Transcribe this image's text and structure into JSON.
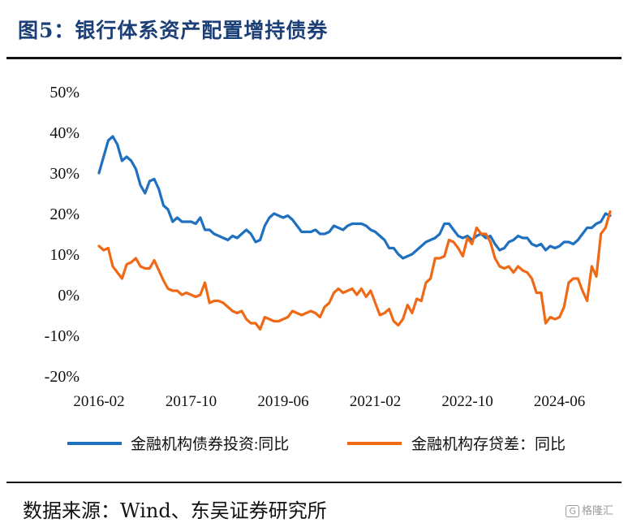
{
  "figure": {
    "title": "图5：银行体系资产配置增持债券",
    "source": "数据来源：Wind、东吴证券研究所",
    "watermark": "格隆汇",
    "watermark_logo": "G"
  },
  "chart_data": {
    "type": "line",
    "title": "图5：银行体系资产配置增持债券",
    "ylim": [
      -0.2,
      0.5
    ],
    "y_ticks": [
      "50%",
      "40%",
      "30%",
      "20%",
      "10%",
      "0%",
      "-10%",
      "-20%"
    ],
    "y_tick_values": [
      0.5,
      0.4,
      0.3,
      0.2,
      0.1,
      0.0,
      -0.1,
      -0.2
    ],
    "x_start": "2016-02",
    "x_end": "2025-05",
    "x_tick_labels": [
      "2016-02",
      "2017-10",
      "2019-06",
      "2021-02",
      "2022-10",
      "2024-06"
    ],
    "grid": false,
    "legend": "bottom",
    "series": [
      {
        "name": "金融机构债券投资:同比",
        "color": "#2070c0",
        "points": [
          [
            "2016-02",
            0.3
          ],
          [
            "2016-03",
            0.34
          ],
          [
            "2016-04",
            0.38
          ],
          [
            "2016-05",
            0.39
          ],
          [
            "2016-06",
            0.37
          ],
          [
            "2016-07",
            0.33
          ],
          [
            "2016-08",
            0.34
          ],
          [
            "2016-09",
            0.33
          ],
          [
            "2016-10",
            0.31
          ],
          [
            "2016-11",
            0.27
          ],
          [
            "2016-12",
            0.25
          ],
          [
            "2017-01",
            0.28
          ],
          [
            "2017-02",
            0.285
          ],
          [
            "2017-03",
            0.26
          ],
          [
            "2017-04",
            0.22
          ],
          [
            "2017-05",
            0.21
          ],
          [
            "2017-06",
            0.18
          ],
          [
            "2017-07",
            0.19
          ],
          [
            "2017-08",
            0.18
          ],
          [
            "2017-09",
            0.18
          ],
          [
            "2017-10",
            0.18
          ],
          [
            "2017-11",
            0.175
          ],
          [
            "2017-12",
            0.19
          ],
          [
            "2018-01",
            0.16
          ],
          [
            "2018-02",
            0.16
          ],
          [
            "2018-03",
            0.15
          ],
          [
            "2018-04",
            0.145
          ],
          [
            "2018-05",
            0.14
          ],
          [
            "2018-06",
            0.135
          ],
          [
            "2018-07",
            0.145
          ],
          [
            "2018-08",
            0.14
          ],
          [
            "2018-09",
            0.15
          ],
          [
            "2018-10",
            0.16
          ],
          [
            "2018-11",
            0.15
          ],
          [
            "2018-12",
            0.13
          ],
          [
            "2019-01",
            0.135
          ],
          [
            "2019-02",
            0.17
          ],
          [
            "2019-03",
            0.19
          ],
          [
            "2019-04",
            0.2
          ],
          [
            "2019-05",
            0.195
          ],
          [
            "2019-06",
            0.19
          ],
          [
            "2019-07",
            0.195
          ],
          [
            "2019-08",
            0.185
          ],
          [
            "2019-09",
            0.17
          ],
          [
            "2019-10",
            0.155
          ],
          [
            "2019-11",
            0.155
          ],
          [
            "2019-12",
            0.155
          ],
          [
            "2020-01",
            0.16
          ],
          [
            "2020-02",
            0.15
          ],
          [
            "2020-03",
            0.15
          ],
          [
            "2020-04",
            0.155
          ],
          [
            "2020-05",
            0.17
          ],
          [
            "2020-06",
            0.165
          ],
          [
            "2020-07",
            0.16
          ],
          [
            "2020-08",
            0.17
          ],
          [
            "2020-09",
            0.175
          ],
          [
            "2020-10",
            0.175
          ],
          [
            "2020-11",
            0.175
          ],
          [
            "2020-12",
            0.17
          ],
          [
            "2021-01",
            0.16
          ],
          [
            "2021-02",
            0.155
          ],
          [
            "2021-03",
            0.145
          ],
          [
            "2021-04",
            0.135
          ],
          [
            "2021-05",
            0.115
          ],
          [
            "2021-06",
            0.115
          ],
          [
            "2021-07",
            0.1
          ],
          [
            "2021-08",
            0.09
          ],
          [
            "2021-09",
            0.095
          ],
          [
            "2021-10",
            0.1
          ],
          [
            "2021-11",
            0.11
          ],
          [
            "2021-12",
            0.12
          ],
          [
            "2022-01",
            0.13
          ],
          [
            "2022-02",
            0.135
          ],
          [
            "2022-03",
            0.14
          ],
          [
            "2022-04",
            0.15
          ],
          [
            "2022-05",
            0.175
          ],
          [
            "2022-06",
            0.175
          ],
          [
            "2022-07",
            0.16
          ],
          [
            "2022-08",
            0.145
          ],
          [
            "2022-09",
            0.14
          ],
          [
            "2022-10",
            0.145
          ],
          [
            "2022-11",
            0.135
          ],
          [
            "2022-12",
            0.145
          ],
          [
            "2023-01",
            0.15
          ],
          [
            "2023-02",
            0.14
          ],
          [
            "2023-03",
            0.145
          ],
          [
            "2023-04",
            0.125
          ],
          [
            "2023-05",
            0.11
          ],
          [
            "2023-06",
            0.115
          ],
          [
            "2023-07",
            0.13
          ],
          [
            "2023-08",
            0.135
          ],
          [
            "2023-09",
            0.145
          ],
          [
            "2023-10",
            0.14
          ],
          [
            "2023-11",
            0.14
          ],
          [
            "2023-12",
            0.125
          ],
          [
            "2024-01",
            0.12
          ],
          [
            "2024-02",
            0.125
          ],
          [
            "2024-03",
            0.11
          ],
          [
            "2024-04",
            0.12
          ],
          [
            "2024-05",
            0.115
          ],
          [
            "2024-06",
            0.12
          ],
          [
            "2024-07",
            0.13
          ],
          [
            "2024-08",
            0.13
          ],
          [
            "2024-09",
            0.125
          ],
          [
            "2024-10",
            0.135
          ],
          [
            "2024-11",
            0.15
          ],
          [
            "2024-12",
            0.165
          ],
          [
            "2025-01",
            0.165
          ],
          [
            "2025-02",
            0.175
          ],
          [
            "2025-03",
            0.18
          ],
          [
            "2025-04",
            0.2
          ],
          [
            "2025-05",
            0.195
          ]
        ]
      },
      {
        "name": "金融机构存贷差：同比",
        "color": "#ee6a17",
        "points": [
          [
            "2016-02",
            0.12
          ],
          [
            "2016-03",
            0.11
          ],
          [
            "2016-04",
            0.115
          ],
          [
            "2016-05",
            0.07
          ],
          [
            "2016-06",
            0.055
          ],
          [
            "2016-07",
            0.04
          ],
          [
            "2016-08",
            0.075
          ],
          [
            "2016-09",
            0.08
          ],
          [
            "2016-10",
            0.09
          ],
          [
            "2016-11",
            0.07
          ],
          [
            "2016-12",
            0.065
          ],
          [
            "2017-01",
            0.065
          ],
          [
            "2017-02",
            0.085
          ],
          [
            "2017-03",
            0.06
          ],
          [
            "2017-04",
            0.035
          ],
          [
            "2017-05",
            0.015
          ],
          [
            "2017-06",
            0.01
          ],
          [
            "2017-07",
            0.01
          ],
          [
            "2017-08",
            0.0
          ],
          [
            "2017-09",
            0.005
          ],
          [
            "2017-10",
            0.0
          ],
          [
            "2017-11",
            -0.005
          ],
          [
            "2017-12",
            0.0
          ],
          [
            "2018-01",
            0.03
          ],
          [
            "2018-02",
            -0.02
          ],
          [
            "2018-03",
            -0.015
          ],
          [
            "2018-04",
            -0.015
          ],
          [
            "2018-05",
            -0.02
          ],
          [
            "2018-06",
            -0.03
          ],
          [
            "2018-07",
            -0.04
          ],
          [
            "2018-08",
            -0.045
          ],
          [
            "2018-09",
            -0.04
          ],
          [
            "2018-10",
            -0.06
          ],
          [
            "2018-11",
            -0.07
          ],
          [
            "2018-12",
            -0.07
          ],
          [
            "2019-01",
            -0.085
          ],
          [
            "2019-02",
            -0.055
          ],
          [
            "2019-03",
            -0.06
          ],
          [
            "2019-04",
            -0.065
          ],
          [
            "2019-05",
            -0.065
          ],
          [
            "2019-06",
            -0.06
          ],
          [
            "2019-07",
            -0.055
          ],
          [
            "2019-08",
            -0.04
          ],
          [
            "2019-09",
            -0.045
          ],
          [
            "2019-10",
            -0.05
          ],
          [
            "2019-11",
            -0.045
          ],
          [
            "2019-12",
            -0.04
          ],
          [
            "2020-01",
            -0.045
          ],
          [
            "2020-02",
            -0.055
          ],
          [
            "2020-03",
            -0.03
          ],
          [
            "2020-04",
            -0.02
          ],
          [
            "2020-05",
            0.005
          ],
          [
            "2020-06",
            0.015
          ],
          [
            "2020-07",
            0.005
          ],
          [
            "2020-08",
            0.01
          ],
          [
            "2020-09",
            0.015
          ],
          [
            "2020-10",
            0.0
          ],
          [
            "2020-11",
            0.015
          ],
          [
            "2020-12",
            -0.005
          ],
          [
            "2021-01",
            0.01
          ],
          [
            "2021-02",
            -0.02
          ],
          [
            "2021-03",
            -0.05
          ],
          [
            "2021-04",
            -0.045
          ],
          [
            "2021-05",
            -0.035
          ],
          [
            "2021-06",
            -0.065
          ],
          [
            "2021-07",
            -0.075
          ],
          [
            "2021-08",
            -0.06
          ],
          [
            "2021-09",
            -0.025
          ],
          [
            "2021-10",
            -0.045
          ],
          [
            "2021-11",
            -0.01
          ],
          [
            "2021-12",
            -0.015
          ],
          [
            "2022-01",
            0.03
          ],
          [
            "2022-02",
            0.04
          ],
          [
            "2022-03",
            0.09
          ],
          [
            "2022-04",
            0.09
          ],
          [
            "2022-05",
            0.095
          ],
          [
            "2022-06",
            0.135
          ],
          [
            "2022-07",
            0.13
          ],
          [
            "2022-08",
            0.115
          ],
          [
            "2022-09",
            0.095
          ],
          [
            "2022-10",
            0.14
          ],
          [
            "2022-11",
            0.125
          ],
          [
            "2022-12",
            0.165
          ],
          [
            "2023-01",
            0.15
          ],
          [
            "2023-02",
            0.15
          ],
          [
            "2023-03",
            0.13
          ],
          [
            "2023-04",
            0.09
          ],
          [
            "2023-05",
            0.07
          ],
          [
            "2023-06",
            0.065
          ],
          [
            "2023-07",
            0.07
          ],
          [
            "2023-08",
            0.055
          ],
          [
            "2023-09",
            0.07
          ],
          [
            "2023-10",
            0.06
          ],
          [
            "2023-11",
            0.055
          ],
          [
            "2023-12",
            0.04
          ],
          [
            "2024-01",
            0.005
          ],
          [
            "2024-02",
            0.005
          ],
          [
            "2024-03",
            -0.07
          ],
          [
            "2024-04",
            -0.055
          ],
          [
            "2024-05",
            -0.06
          ],
          [
            "2024-06",
            -0.055
          ],
          [
            "2024-07",
            -0.03
          ],
          [
            "2024-08",
            0.03
          ],
          [
            "2024-09",
            0.04
          ],
          [
            "2024-10",
            0.04
          ],
          [
            "2024-11",
            0.01
          ],
          [
            "2024-12",
            -0.015
          ],
          [
            "2025-01",
            0.07
          ],
          [
            "2025-02",
            0.045
          ],
          [
            "2025-03",
            0.15
          ],
          [
            "2025-04",
            0.165
          ],
          [
            "2025-05",
            0.205
          ]
        ]
      }
    ]
  }
}
